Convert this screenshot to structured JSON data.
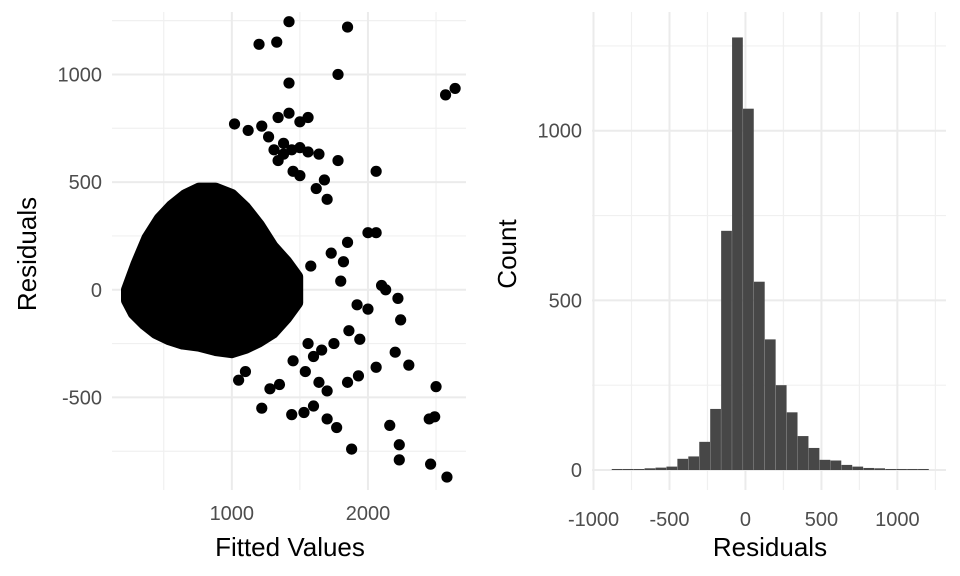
{
  "chart_data": [
    {
      "type": "scatter",
      "title": "",
      "xlabel": "Fitted Values",
      "ylabel": "Residuals",
      "xlim": [
        120,
        2720
      ],
      "ylim": [
        -930,
        1290
      ],
      "x_ticks": [
        1000,
        2000
      ],
      "x_tick_labels": [
        "1000",
        "2000"
      ],
      "y_ticks": [
        -500,
        0,
        500,
        1000
      ],
      "y_tick_labels": [
        "-500",
        "0",
        "500",
        "1000"
      ],
      "grid": true,
      "point_color": "#000000",
      "dense_cloud": [
        [
          230,
          0
        ],
        [
          300,
          120
        ],
        [
          380,
          240
        ],
        [
          470,
          330
        ],
        [
          560,
          390
        ],
        [
          660,
          440
        ],
        [
          760,
          470
        ],
        [
          880,
          470
        ],
        [
          1000,
          440
        ],
        [
          1100,
          380
        ],
        [
          1200,
          300
        ],
        [
          1300,
          200
        ],
        [
          1400,
          130
        ],
        [
          1480,
          60
        ],
        [
          1480,
          -60
        ],
        [
          1400,
          -130
        ],
        [
          1300,
          -200
        ],
        [
          1200,
          -240
        ],
        [
          1100,
          -270
        ],
        [
          1000,
          -290
        ],
        [
          880,
          -280
        ],
        [
          760,
          -260
        ],
        [
          640,
          -250
        ],
        [
          540,
          -230
        ],
        [
          440,
          -200
        ],
        [
          360,
          -160
        ],
        [
          280,
          -110
        ],
        [
          230,
          -50
        ]
      ],
      "points": [
        [
          1420,
          1245
        ],
        [
          1850,
          1220
        ],
        [
          1200,
          1140
        ],
        [
          1330,
          1150
        ],
        [
          1420,
          960
        ],
        [
          1780,
          1000
        ],
        [
          2570,
          905
        ],
        [
          2640,
          935
        ],
        [
          1020,
          770
        ],
        [
          1120,
          740
        ],
        [
          1420,
          820
        ],
        [
          1340,
          800
        ],
        [
          1560,
          800
        ],
        [
          1500,
          780
        ],
        [
          1220,
          760
        ],
        [
          1270,
          710
        ],
        [
          1380,
          680
        ],
        [
          1500,
          660
        ],
        [
          1310,
          650
        ],
        [
          1380,
          630
        ],
        [
          1440,
          650
        ],
        [
          1560,
          640
        ],
        [
          1340,
          600
        ],
        [
          1640,
          630
        ],
        [
          1780,
          600
        ],
        [
          2060,
          550
        ],
        [
          1450,
          550
        ],
        [
          1500,
          530
        ],
        [
          1680,
          510
        ],
        [
          1620,
          470
        ],
        [
          1700,
          420
        ],
        [
          2000,
          265
        ],
        [
          2060,
          265
        ],
        [
          1850,
          220
        ],
        [
          1730,
          170
        ],
        [
          1820,
          130
        ],
        [
          1580,
          110
        ],
        [
          1800,
          40
        ],
        [
          2100,
          20
        ],
        [
          2220,
          -40
        ],
        [
          1920,
          -70
        ],
        [
          2000,
          -90
        ],
        [
          2130,
          0
        ],
        [
          2240,
          -140
        ],
        [
          1860,
          -190
        ],
        [
          1940,
          -230
        ],
        [
          2200,
          -290
        ],
        [
          2060,
          -360
        ],
        [
          2300,
          -350
        ],
        [
          2500,
          -450
        ],
        [
          1640,
          -430
        ],
        [
          1700,
          -470
        ],
        [
          1850,
          -430
        ],
        [
          1930,
          -400
        ],
        [
          1600,
          -540
        ],
        [
          1530,
          -570
        ],
        [
          1440,
          -580
        ],
        [
          1700,
          -600
        ],
        [
          1770,
          -640
        ],
        [
          1880,
          -740
        ],
        [
          2160,
          -630
        ],
        [
          2230,
          -720
        ],
        [
          2230,
          -790
        ],
        [
          2450,
          -600
        ],
        [
          2490,
          -590
        ],
        [
          2460,
          -810
        ],
        [
          2580,
          -870
        ],
        [
          1220,
          -550
        ],
        [
          1280,
          -460
        ],
        [
          1350,
          -440
        ],
        [
          1050,
          -420
        ],
        [
          1100,
          -380
        ],
        [
          1540,
          -380
        ],
        [
          1600,
          -310
        ],
        [
          1660,
          -280
        ],
        [
          1750,
          -250
        ],
        [
          1450,
          -330
        ],
        [
          1560,
          -250
        ]
      ]
    },
    {
      "type": "bar",
      "title": "",
      "xlabel": "Residuals",
      "ylabel": "Count",
      "xlim": [
        -1010,
        1320
      ],
      "ylim": [
        0,
        1350
      ],
      "x_ticks": [
        -1000,
        -500,
        0,
        500,
        1000
      ],
      "x_tick_labels": [
        "-1000",
        "-500",
        "0",
        "500",
        "1000"
      ],
      "y_ticks": [
        0,
        500,
        1000
      ],
      "y_tick_labels": [
        "0",
        "500",
        "1000"
      ],
      "grid": true,
      "bar_color": "#474747",
      "bin_width": 72,
      "bin_starts": [
        -880,
        -808,
        -736,
        -664,
        -592,
        -520,
        -448,
        -376,
        -304,
        -232,
        -160,
        -88,
        -16,
        56,
        128,
        200,
        272,
        344,
        416,
        488,
        560,
        632,
        704,
        776,
        848,
        920,
        992,
        1064,
        1136
      ],
      "values": [
        3,
        3,
        3,
        5,
        7,
        10,
        33,
        40,
        83,
        180,
        705,
        1275,
        1065,
        555,
        385,
        250,
        170,
        100,
        65,
        30,
        28,
        15,
        10,
        6,
        5,
        3,
        3,
        3,
        3
      ]
    }
  ]
}
